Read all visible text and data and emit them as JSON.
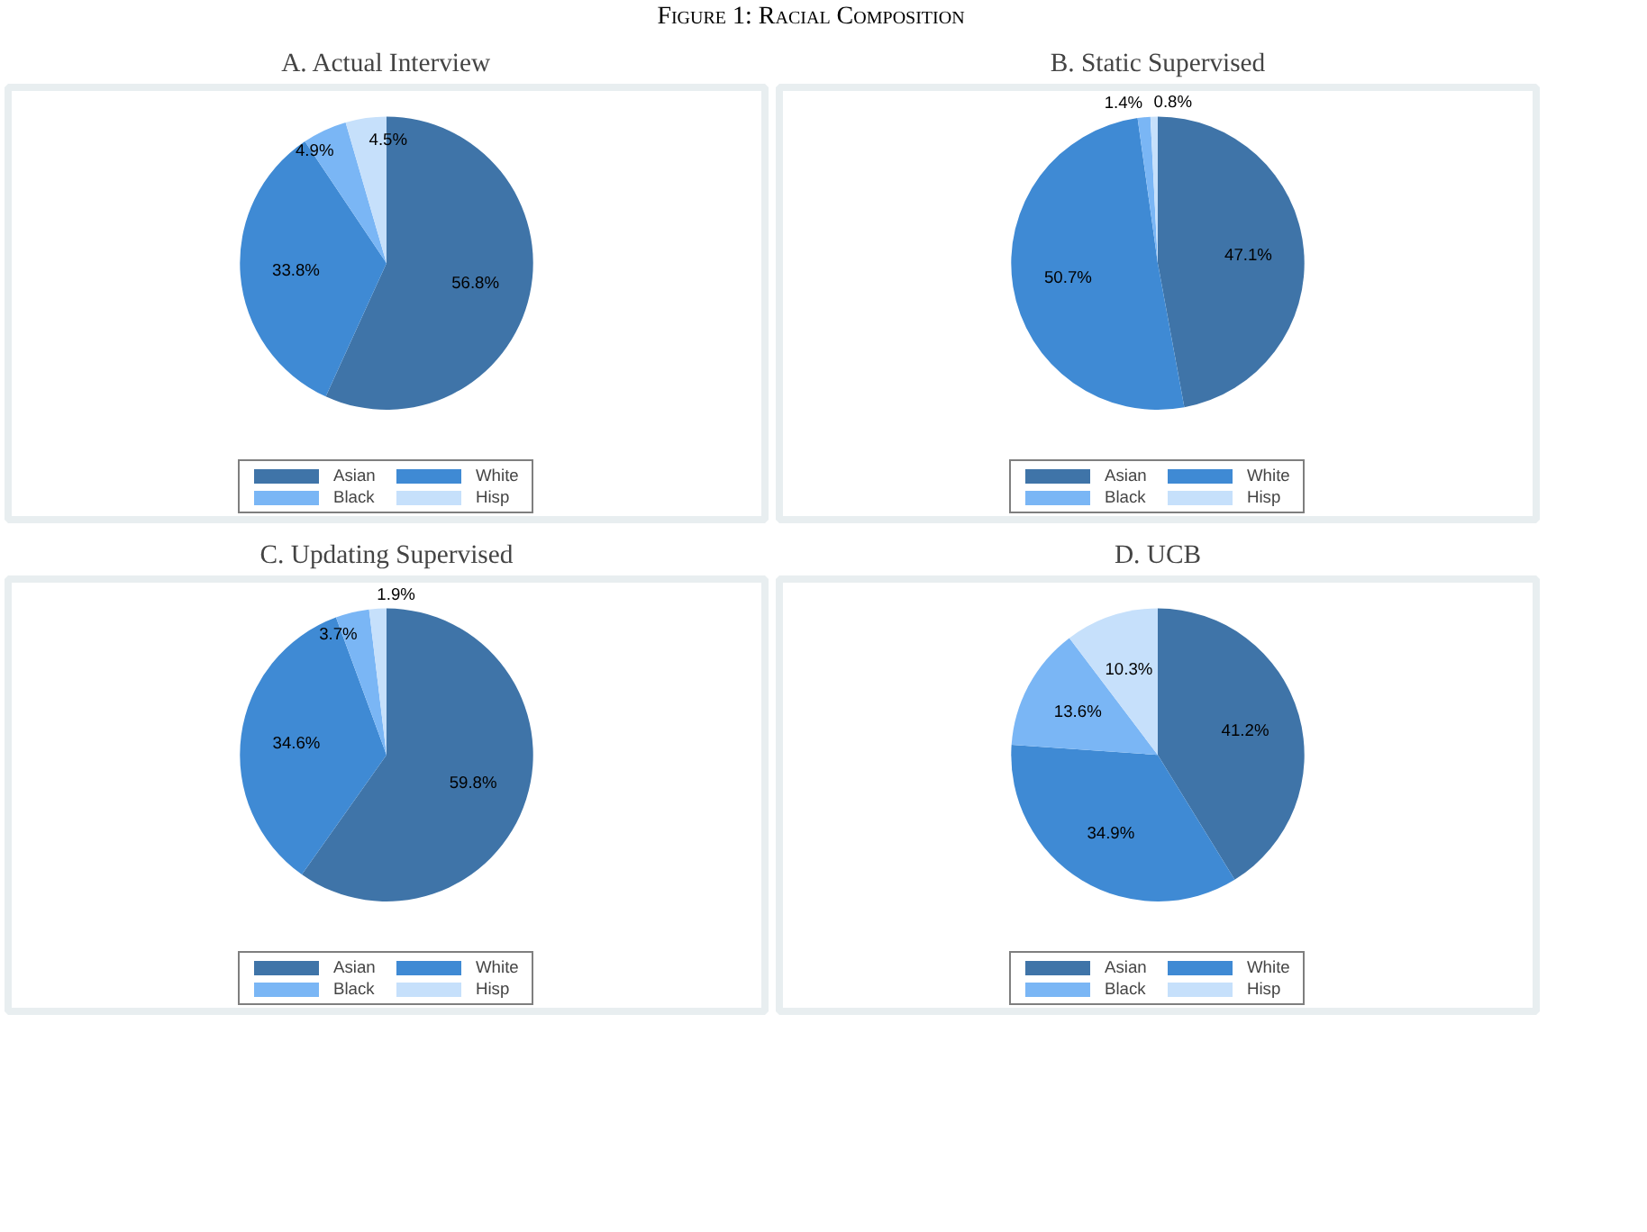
{
  "chart_data": [
    {
      "type": "pie",
      "title": "A. Actual Interview",
      "annotations": [
        "Figure 1: Racial Composition"
      ],
      "categories": [
        "Asian",
        "White",
        "Black",
        "Hisp"
      ],
      "values": [
        56.8,
        33.8,
        4.9,
        4.5
      ],
      "value_labels": [
        "56.8%",
        "33.8%",
        "4.9%",
        "4.5%"
      ],
      "colors": [
        "#3f74a8",
        "#3f8ad4",
        "#7ab6f5",
        "#c6e0fb"
      ],
      "legend": "bottom"
    },
    {
      "type": "pie",
      "title": "B. Static Supervised",
      "categories": [
        "Asian",
        "White",
        "Black",
        "Hisp"
      ],
      "values": [
        47.1,
        50.7,
        1.4,
        0.8
      ],
      "value_labels": [
        "47.1%",
        "50.7%",
        "1.4%",
        "0.8%"
      ],
      "colors": [
        "#3f74a8",
        "#3f8ad4",
        "#7ab6f5",
        "#c6e0fb"
      ],
      "legend": "bottom"
    },
    {
      "type": "pie",
      "title": "C. Updating Supervised",
      "categories": [
        "Asian",
        "White",
        "Black",
        "Hisp"
      ],
      "values": [
        59.8,
        34.6,
        3.7,
        1.9
      ],
      "value_labels": [
        "59.8%",
        "34.6%",
        "3.7%",
        "1.9%"
      ],
      "colors": [
        "#3f74a8",
        "#3f8ad4",
        "#7ab6f5",
        "#c6e0fb"
      ],
      "legend": "bottom"
    },
    {
      "type": "pie",
      "title": "D. UCB",
      "categories": [
        "Asian",
        "White",
        "Black",
        "Hisp"
      ],
      "values": [
        41.2,
        34.9,
        13.6,
        10.3
      ],
      "value_labels": [
        "41.2%",
        "34.9%",
        "13.6%",
        "10.3%"
      ],
      "colors": [
        "#3f74a8",
        "#3f8ad4",
        "#7ab6f5",
        "#c6e0fb"
      ],
      "legend": "bottom"
    }
  ]
}
